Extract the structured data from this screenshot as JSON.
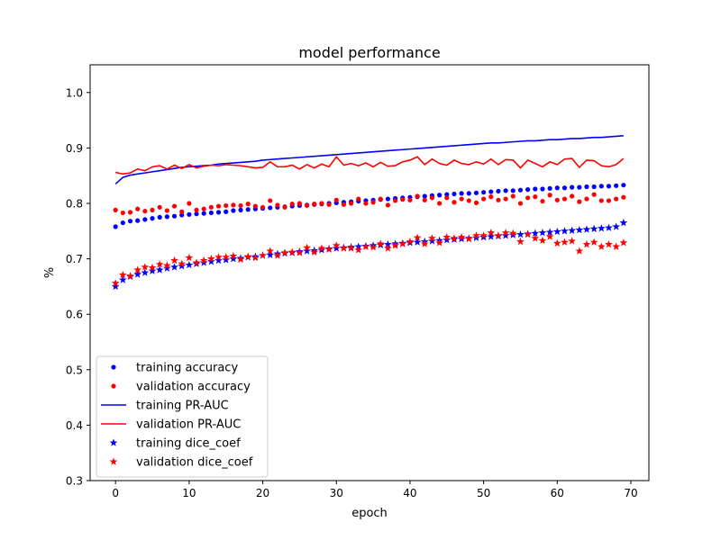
{
  "chart_data": {
    "type": "scatter",
    "title": "model performance",
    "xlabel": "epoch",
    "ylabel": "%",
    "xlim": [
      -3.45,
      72.45
    ],
    "ylim": [
      0.3,
      1.05
    ],
    "xticks": [
      0,
      10,
      20,
      30,
      40,
      50,
      60,
      70
    ],
    "yticks": [
      0.3,
      0.4,
      0.5,
      0.6,
      0.7,
      0.8,
      0.9,
      1.0
    ],
    "grid": false,
    "legend_position": "lower-left",
    "x": [
      0,
      1,
      2,
      3,
      4,
      5,
      6,
      7,
      8,
      9,
      10,
      11,
      12,
      13,
      14,
      15,
      16,
      17,
      18,
      19,
      20,
      21,
      22,
      23,
      24,
      25,
      26,
      27,
      28,
      29,
      30,
      31,
      32,
      33,
      34,
      35,
      36,
      37,
      38,
      39,
      40,
      41,
      42,
      43,
      44,
      45,
      46,
      47,
      48,
      49,
      50,
      51,
      52,
      53,
      54,
      55,
      56,
      57,
      58,
      59,
      60,
      61,
      62,
      63,
      64,
      65,
      66,
      67,
      68,
      69
    ],
    "series": [
      {
        "name": "training accuracy",
        "marker": "dot",
        "color": "#0000ff",
        "values": [
          0.758,
          0.765,
          0.768,
          0.769,
          0.771,
          0.773,
          0.775,
          0.776,
          0.777,
          0.779,
          0.78,
          0.781,
          0.782,
          0.783,
          0.784,
          0.785,
          0.787,
          0.788,
          0.789,
          0.79,
          0.791,
          0.792,
          0.793,
          0.794,
          0.795,
          0.796,
          0.797,
          0.798,
          0.799,
          0.8,
          0.801,
          0.802,
          0.803,
          0.804,
          0.805,
          0.806,
          0.807,
          0.808,
          0.809,
          0.81,
          0.811,
          0.812,
          0.813,
          0.814,
          0.815,
          0.816,
          0.817,
          0.818,
          0.818,
          0.819,
          0.82,
          0.821,
          0.822,
          0.823,
          0.823,
          0.824,
          0.825,
          0.826,
          0.826,
          0.827,
          0.828,
          0.828,
          0.829,
          0.829,
          0.83,
          0.83,
          0.831,
          0.831,
          0.832,
          0.833
        ]
      },
      {
        "name": "validation accuracy",
        "marker": "dot",
        "color": "#ff0000",
        "values": [
          0.788,
          0.783,
          0.784,
          0.79,
          0.786,
          0.788,
          0.793,
          0.787,
          0.795,
          0.785,
          0.8,
          0.788,
          0.79,
          0.793,
          0.795,
          0.796,
          0.797,
          0.796,
          0.799,
          0.795,
          0.793,
          0.805,
          0.797,
          0.793,
          0.799,
          0.8,
          0.796,
          0.799,
          0.8,
          0.798,
          0.806,
          0.798,
          0.8,
          0.808,
          0.8,
          0.802,
          0.808,
          0.797,
          0.805,
          0.807,
          0.806,
          0.813,
          0.806,
          0.81,
          0.8,
          0.81,
          0.802,
          0.808,
          0.805,
          0.801,
          0.808,
          0.812,
          0.806,
          0.808,
          0.813,
          0.8,
          0.81,
          0.812,
          0.804,
          0.815,
          0.806,
          0.808,
          0.813,
          0.803,
          0.808,
          0.816,
          0.805,
          0.805,
          0.808,
          0.811
        ]
      },
      {
        "name": "training PR-AUC",
        "marker": "line",
        "color": "#0000ff",
        "values": [
          0.835,
          0.847,
          0.851,
          0.853,
          0.855,
          0.857,
          0.859,
          0.861,
          0.863,
          0.865,
          0.866,
          0.867,
          0.868,
          0.869,
          0.871,
          0.872,
          0.873,
          0.874,
          0.875,
          0.876,
          0.878,
          0.879,
          0.88,
          0.881,
          0.882,
          0.883,
          0.884,
          0.885,
          0.886,
          0.887,
          0.888,
          0.889,
          0.89,
          0.891,
          0.892,
          0.893,
          0.894,
          0.895,
          0.896,
          0.897,
          0.898,
          0.899,
          0.9,
          0.901,
          0.902,
          0.903,
          0.904,
          0.905,
          0.906,
          0.907,
          0.908,
          0.909,
          0.909,
          0.91,
          0.911,
          0.912,
          0.913,
          0.913,
          0.914,
          0.915,
          0.915,
          0.916,
          0.917,
          0.917,
          0.918,
          0.919,
          0.919,
          0.92,
          0.921,
          0.922
        ]
      },
      {
        "name": "validation PR-AUC",
        "marker": "line",
        "color": "#ff0000",
        "values": [
          0.856,
          0.853,
          0.855,
          0.862,
          0.859,
          0.866,
          0.868,
          0.862,
          0.869,
          0.863,
          0.87,
          0.864,
          0.867,
          0.869,
          0.868,
          0.87,
          0.869,
          0.868,
          0.866,
          0.864,
          0.865,
          0.875,
          0.866,
          0.866,
          0.869,
          0.862,
          0.87,
          0.864,
          0.871,
          0.866,
          0.884,
          0.869,
          0.872,
          0.868,
          0.873,
          0.866,
          0.874,
          0.867,
          0.868,
          0.875,
          0.878,
          0.884,
          0.87,
          0.88,
          0.872,
          0.869,
          0.878,
          0.872,
          0.87,
          0.875,
          0.871,
          0.88,
          0.87,
          0.879,
          0.878,
          0.864,
          0.878,
          0.872,
          0.866,
          0.875,
          0.87,
          0.88,
          0.881,
          0.865,
          0.878,
          0.877,
          0.868,
          0.866,
          0.87,
          0.881
        ]
      },
      {
        "name": "training dice_coef",
        "marker": "star",
        "color": "#0000ff",
        "values": [
          0.65,
          0.662,
          0.668,
          0.672,
          0.675,
          0.678,
          0.68,
          0.683,
          0.685,
          0.687,
          0.689,
          0.691,
          0.693,
          0.695,
          0.697,
          0.698,
          0.7,
          0.701,
          0.703,
          0.704,
          0.706,
          0.707,
          0.709,
          0.71,
          0.711,
          0.713,
          0.714,
          0.715,
          0.716,
          0.718,
          0.719,
          0.72,
          0.721,
          0.722,
          0.723,
          0.724,
          0.725,
          0.726,
          0.727,
          0.728,
          0.729,
          0.73,
          0.731,
          0.732,
          0.733,
          0.734,
          0.735,
          0.736,
          0.737,
          0.738,
          0.739,
          0.74,
          0.741,
          0.742,
          0.743,
          0.744,
          0.745,
          0.746,
          0.747,
          0.748,
          0.749,
          0.75,
          0.751,
          0.752,
          0.753,
          0.754,
          0.755,
          0.756,
          0.758,
          0.765
        ]
      },
      {
        "name": "validation dice_coef",
        "marker": "star",
        "color": "#ff0000",
        "values": [
          0.656,
          0.671,
          0.669,
          0.68,
          0.685,
          0.684,
          0.69,
          0.688,
          0.697,
          0.691,
          0.702,
          0.693,
          0.697,
          0.7,
          0.703,
          0.703,
          0.705,
          0.699,
          0.704,
          0.702,
          0.706,
          0.714,
          0.706,
          0.711,
          0.712,
          0.711,
          0.72,
          0.712,
          0.719,
          0.717,
          0.724,
          0.719,
          0.719,
          0.716,
          0.722,
          0.721,
          0.727,
          0.719,
          0.724,
          0.727,
          0.731,
          0.738,
          0.727,
          0.737,
          0.729,
          0.739,
          0.737,
          0.739,
          0.736,
          0.742,
          0.742,
          0.747,
          0.742,
          0.747,
          0.746,
          0.731,
          0.744,
          0.737,
          0.733,
          0.74,
          0.728,
          0.73,
          0.732,
          0.714,
          0.726,
          0.73,
          0.722,
          0.726,
          0.722,
          0.729
        ]
      }
    ]
  }
}
